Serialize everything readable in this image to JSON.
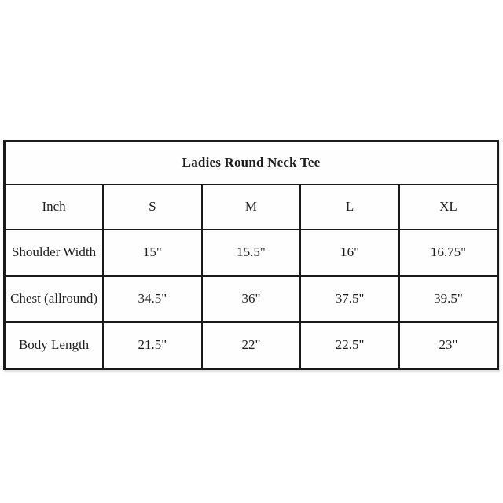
{
  "chart_data": {
    "type": "table",
    "title": "Ladies Round Neck Tee",
    "unit_label": "Inch",
    "columns": [
      "Inch",
      "S",
      "M",
      "L",
      "XL"
    ],
    "rows": [
      {
        "label": "Shoulder Width",
        "values": [
          "15\"",
          "15.5\"",
          "16\"",
          "16.75\""
        ]
      },
      {
        "label": "Chest (allround)",
        "values": [
          "34.5\"",
          "36\"",
          "37.5\"",
          "39.5\""
        ]
      },
      {
        "label": "Body Length",
        "values": [
          "21.5\"",
          "22\"",
          "22.5\"",
          "23\""
        ]
      }
    ],
    "colors": {
      "border": "#1a1a1a",
      "text": "#1e1d1d",
      "background": "#ffffff"
    },
    "layout": {
      "grid": "on",
      "column_count": 5,
      "row_count": 5
    }
  }
}
